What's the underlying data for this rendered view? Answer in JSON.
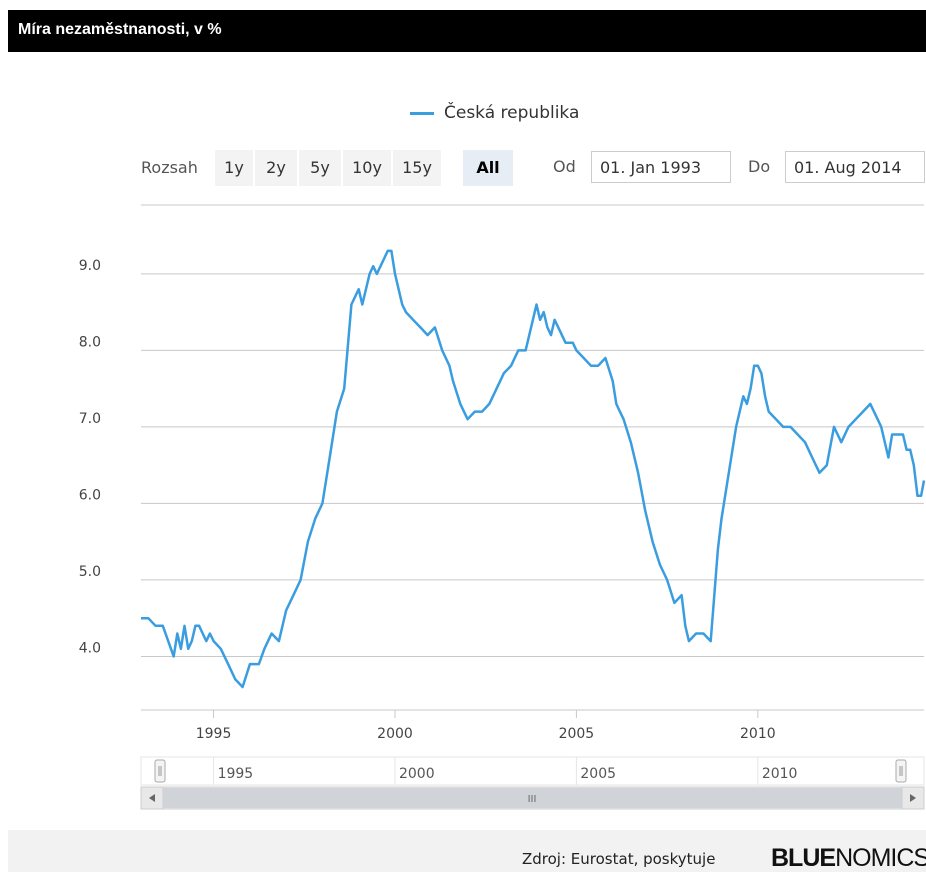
{
  "header": {
    "title": "Míra nezaměstnanosti, v %"
  },
  "legend": {
    "label": "Česká republika"
  },
  "range_selector": {
    "label": "Rozsah",
    "buttons": [
      "1y",
      "2y",
      "5y",
      "10y",
      "15y",
      "All"
    ],
    "selected": "All",
    "from_label": "Od",
    "from_value": "01. Jan 1993",
    "to_label": "Do",
    "to_value": "01. Aug 2014"
  },
  "navigator": {
    "labels": [
      "1995",
      "2000",
      "2005",
      "2010"
    ],
    "scroll_left_icon": "arrow-left",
    "scroll_right_icon": "arrow-right",
    "grip_label": "III"
  },
  "footer": {
    "source": "Zdroj: Eurostat, poskytuje",
    "logo_bold": "BLUE",
    "logo_light": "NOMICS",
    "logo_tm": "™"
  },
  "colors": {
    "series": "#3a9de0",
    "grid": "#c8c8c8",
    "header_bg": "#000000"
  },
  "chart_data": {
    "type": "line",
    "title": "Míra nezaměstnanosti, v %",
    "xlabel": "",
    "ylabel": "",
    "xlim": [
      1993.0,
      2014.58
    ],
    "ylim": [
      3.3,
      9.9
    ],
    "y_ticks": [
      4.0,
      5.0,
      6.0,
      7.0,
      8.0,
      9.0
    ],
    "x_ticks": [
      1995,
      2000,
      2005,
      2010
    ],
    "y_tick_labels": [
      "4.0",
      "5.0",
      "6.0",
      "7.0",
      "8.0",
      "9.0"
    ],
    "x_tick_labels": [
      "1995",
      "2000",
      "2005",
      "2010"
    ],
    "grid": true,
    "series": [
      {
        "name": "Česká republika",
        "x": [
          1993.0,
          1993.2,
          1993.4,
          1993.6,
          1993.75,
          1993.9,
          1994.0,
          1994.1,
          1994.2,
          1994.3,
          1994.4,
          1994.5,
          1994.6,
          1994.7,
          1994.8,
          1994.9,
          1995.0,
          1995.2,
          1995.4,
          1995.6,
          1995.8,
          1996.0,
          1996.1,
          1996.25,
          1996.4,
          1996.6,
          1996.8,
          1997.0,
          1997.2,
          1997.4,
          1997.6,
          1997.8,
          1998.0,
          1998.2,
          1998.4,
          1998.6,
          1998.8,
          1999.0,
          1999.1,
          1999.3,
          1999.4,
          1999.5,
          1999.6,
          1999.7,
          1999.8,
          1999.9,
          2000.0,
          2000.1,
          2000.2,
          2000.3,
          2000.5,
          2000.7,
          2000.9,
          2001.1,
          2001.3,
          2001.5,
          2001.6,
          2001.8,
          2002.0,
          2002.2,
          2002.4,
          2002.6,
          2002.8,
          2003.0,
          2003.2,
          2003.4,
          2003.6,
          2003.8,
          2003.9,
          2004.0,
          2004.1,
          2004.2,
          2004.3,
          2004.4,
          2004.5,
          2004.7,
          2004.9,
          2005.0,
          2005.2,
          2005.4,
          2005.6,
          2005.8,
          2006.0,
          2006.1,
          2006.2,
          2006.3,
          2006.5,
          2006.7,
          2006.9,
          2007.1,
          2007.3,
          2007.5,
          2007.7,
          2007.9,
          2008.0,
          2008.1,
          2008.3,
          2008.5,
          2008.7,
          2008.9,
          2009.0,
          2009.2,
          2009.4,
          2009.6,
          2009.7,
          2009.8,
          2009.9,
          2010.0,
          2010.1,
          2010.2,
          2010.3,
          2010.5,
          2010.7,
          2010.9,
          2011.1,
          2011.3,
          2011.5,
          2011.7,
          2011.9,
          2012.1,
          2012.3,
          2012.5,
          2012.7,
          2012.9,
          2013.1,
          2013.3,
          2013.4,
          2013.6,
          2013.7,
          2013.9,
          2014.0,
          2014.1,
          2014.2,
          2014.3,
          2014.4,
          2014.5,
          2014.58
        ],
        "values": [
          4.5,
          4.5,
          4.4,
          4.4,
          4.2,
          4.0,
          4.3,
          4.1,
          4.4,
          4.1,
          4.2,
          4.4,
          4.4,
          4.3,
          4.2,
          4.3,
          4.2,
          4.1,
          3.9,
          3.7,
          3.6,
          3.9,
          3.9,
          3.9,
          4.1,
          4.3,
          4.2,
          4.6,
          4.8,
          5.0,
          5.5,
          5.8,
          6.0,
          6.6,
          7.2,
          7.5,
          8.6,
          8.8,
          8.6,
          9.0,
          9.1,
          9.0,
          9.1,
          9.2,
          9.3,
          9.3,
          9.0,
          8.8,
          8.6,
          8.5,
          8.4,
          8.3,
          8.2,
          8.3,
          8.0,
          7.8,
          7.6,
          7.3,
          7.1,
          7.2,
          7.2,
          7.3,
          7.5,
          7.7,
          7.8,
          8.0,
          8.0,
          8.4,
          8.6,
          8.4,
          8.5,
          8.3,
          8.2,
          8.4,
          8.3,
          8.1,
          8.1,
          8.0,
          7.9,
          7.8,
          7.8,
          7.9,
          7.6,
          7.3,
          7.2,
          7.1,
          6.8,
          6.4,
          5.9,
          5.5,
          5.2,
          5.0,
          4.7,
          4.8,
          4.4,
          4.2,
          4.3,
          4.3,
          4.2,
          5.4,
          5.8,
          6.4,
          7.0,
          7.4,
          7.3,
          7.5,
          7.8,
          7.8,
          7.7,
          7.4,
          7.2,
          7.1,
          7.0,
          7.0,
          6.9,
          6.8,
          6.6,
          6.4,
          6.5,
          7.0,
          6.8,
          7.0,
          7.1,
          7.2,
          7.3,
          7.1,
          7.0,
          6.6,
          6.9,
          6.9,
          6.9,
          6.7,
          6.7,
          6.5,
          6.1,
          6.1,
          6.3
        ]
      }
    ]
  }
}
